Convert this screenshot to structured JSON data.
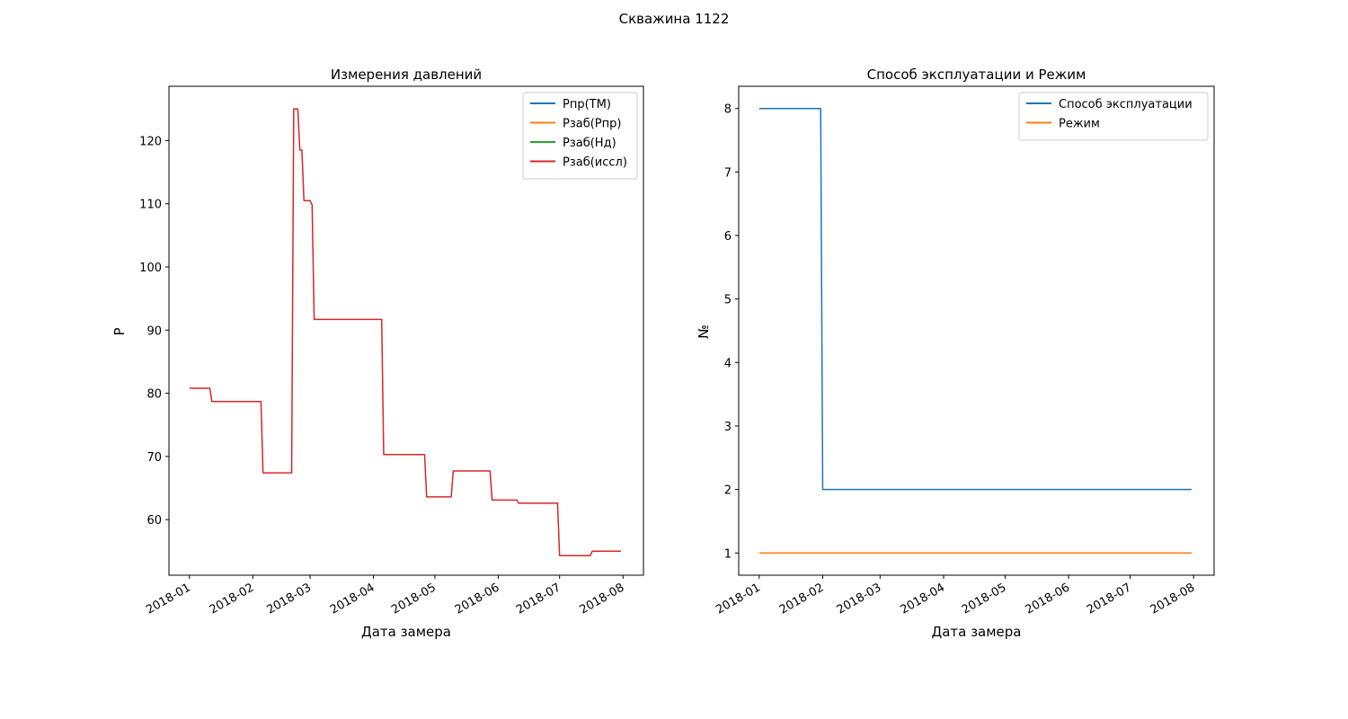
{
  "figure": {
    "title": "Скважина 1122"
  },
  "chart_data": [
    {
      "type": "line",
      "title": "Измерения давлений",
      "xlabel": "Дата замера",
      "ylabel": "P",
      "x_ticks": [
        "2018-01",
        "2018-02",
        "2018-03",
        "2018-04",
        "2018-05",
        "2018-06",
        "2018-07",
        "2018-08"
      ],
      "x_tick_dates": [
        "2018-01-01",
        "2018-02-01",
        "2018-03-01",
        "2018-04-01",
        "2018-05-01",
        "2018-06-01",
        "2018-07-01",
        "2018-08-01"
      ],
      "xlim": [
        "2017-12-22",
        "2018-08-11"
      ],
      "y_ticks": [
        60,
        70,
        80,
        90,
        100,
        110,
        120
      ],
      "ylim": [
        51.2,
        128.6
      ],
      "grid": false,
      "legend_position": "top-right",
      "series": [
        {
          "name": "Рпр(ТМ)",
          "color": "#1f77b4",
          "points": []
        },
        {
          "name": "Рзаб(Рпр)",
          "color": "#ff7f0e",
          "points": []
        },
        {
          "name": "Рзаб(Нд)",
          "color": "#2ca02c",
          "points": []
        },
        {
          "name": "Рзаб(иссл)",
          "color": "#d62728",
          "points": [
            [
              "2018-01-01",
              80.8
            ],
            [
              "2018-01-11",
              80.8
            ],
            [
              "2018-01-12",
              78.7
            ],
            [
              "2018-02-05",
              78.7
            ],
            [
              "2018-02-06",
              67.4
            ],
            [
              "2018-02-20",
              67.4
            ],
            [
              "2018-02-21",
              125.0
            ],
            [
              "2018-02-23",
              125.0
            ],
            [
              "2018-02-24",
              118.5
            ],
            [
              "2018-02-25",
              118.5
            ],
            [
              "2018-02-26",
              110.5
            ],
            [
              "2018-02-28",
              110.5
            ],
            [
              "2018-03-01",
              110.5
            ],
            [
              "2018-03-02",
              109.8
            ],
            [
              "2018-03-03",
              91.7
            ],
            [
              "2018-04-05",
              91.7
            ],
            [
              "2018-04-06",
              70.3
            ],
            [
              "2018-04-26",
              70.3
            ],
            [
              "2018-04-27",
              63.6
            ],
            [
              "2018-05-09",
              63.6
            ],
            [
              "2018-05-10",
              67.7
            ],
            [
              "2018-05-28",
              67.7
            ],
            [
              "2018-05-29",
              63.1
            ],
            [
              "2018-06-10",
              63.1
            ],
            [
              "2018-06-11",
              62.6
            ],
            [
              "2018-06-30",
              62.6
            ],
            [
              "2018-07-01",
              54.3
            ],
            [
              "2018-07-16",
              54.3
            ],
            [
              "2018-07-17",
              55.0
            ],
            [
              "2018-07-31",
              55.0
            ]
          ]
        }
      ]
    },
    {
      "type": "line",
      "title": "Способ эксплуатации и Режим",
      "xlabel": "Дата замера",
      "ylabel": "№",
      "x_ticks": [
        "2018-01",
        "2018-02",
        "2018-03",
        "2018-04",
        "2018-05",
        "2018-06",
        "2018-07",
        "2018-08"
      ],
      "x_tick_dates": [
        "2018-01-01",
        "2018-02-01",
        "2018-03-01",
        "2018-04-01",
        "2018-05-01",
        "2018-06-01",
        "2018-07-01",
        "2018-08-01"
      ],
      "xlim": [
        "2017-12-22",
        "2018-08-11"
      ],
      "y_ticks": [
        1,
        2,
        3,
        4,
        5,
        6,
        7,
        8
      ],
      "ylim": [
        0.65,
        8.35
      ],
      "grid": false,
      "legend_position": "top-right",
      "series": [
        {
          "name": "Способ эксплуатации",
          "color": "#1f77b4",
          "points": [
            [
              "2018-01-01",
              8
            ],
            [
              "2018-01-31",
              8
            ],
            [
              "2018-02-01",
              2
            ],
            [
              "2018-07-31",
              2
            ]
          ]
        },
        {
          "name": "Режим",
          "color": "#ff7f0e",
          "points": [
            [
              "2018-01-01",
              1
            ],
            [
              "2018-07-31",
              1
            ]
          ]
        }
      ]
    }
  ]
}
